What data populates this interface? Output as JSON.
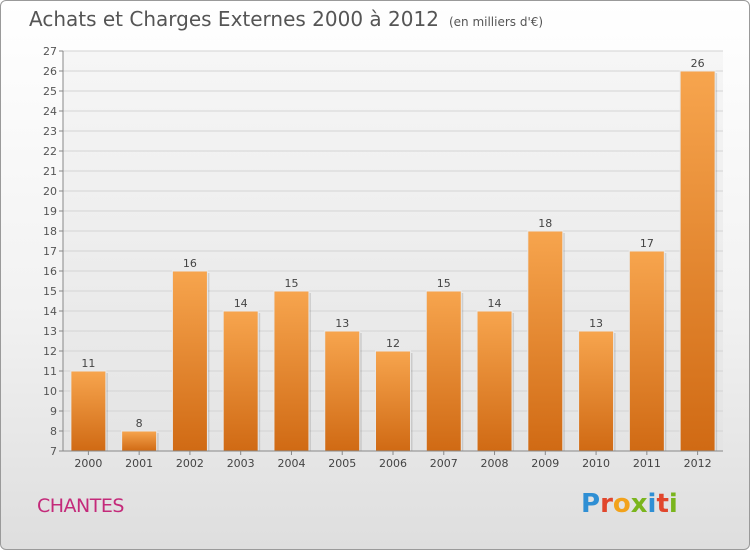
{
  "header": {
    "title": "Achats et Charges Externes 2000 à 2012",
    "unit": "(en milliers d'€)"
  },
  "footer": {
    "place": "CHANTES",
    "logo": "Proxiti"
  },
  "colors": {
    "bar_light": "#f7a54e",
    "bar_dark": "#d06a14",
    "place": "#c42a7a"
  },
  "chart_data": {
    "type": "bar",
    "title": "Achats et Charges Externes 2000 à 2012",
    "subtitle": "(en milliers d'€)",
    "categories": [
      "2000",
      "2001",
      "2002",
      "2003",
      "2004",
      "2005",
      "2006",
      "2007",
      "2008",
      "2009",
      "2010",
      "2011",
      "2012"
    ],
    "values": [
      11,
      8,
      16,
      14,
      15,
      13,
      12,
      15,
      14,
      18,
      13,
      17,
      26
    ],
    "ylim": [
      7,
      27
    ],
    "yticks": [
      7,
      8,
      9,
      10,
      11,
      12,
      13,
      14,
      15,
      16,
      17,
      18,
      19,
      20,
      21,
      22,
      23,
      24,
      25,
      26,
      27
    ],
    "grid": true,
    "xlabel": "",
    "ylabel": ""
  }
}
